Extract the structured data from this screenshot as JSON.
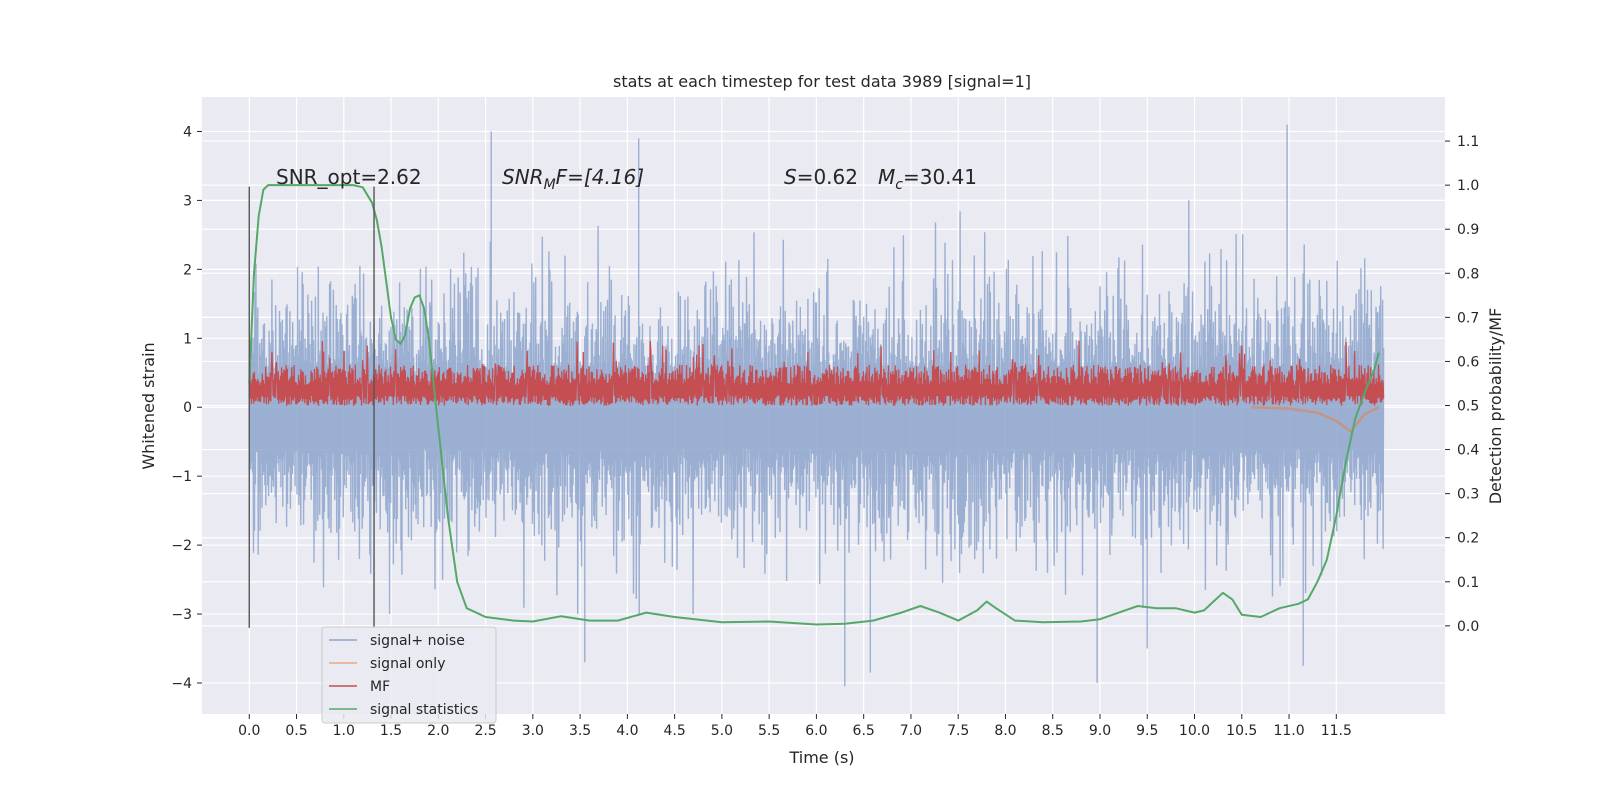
{
  "chart_data": {
    "type": "line",
    "title": "stats at each timestep for test data 3989 [signal=1]",
    "xlabel": "Time (s)",
    "ylabel": "Whitened strain",
    "y2label": "Detection probability/MF",
    "xlim": [
      -0.5,
      12.65
    ],
    "ylim": [
      -4.45,
      4.5
    ],
    "y2lim": [
      -0.2,
      1.2
    ],
    "xticks": [
      0.0,
      0.5,
      1.0,
      1.5,
      2.0,
      2.5,
      3.0,
      3.5,
      4.0,
      4.5,
      5.0,
      5.5,
      6.0,
      6.5,
      7.0,
      7.5,
      8.0,
      8.5,
      9.0,
      9.5,
      10.0,
      10.5,
      11.0,
      11.5
    ],
    "xtick_labels": [
      "0.0",
      "0.5",
      "1.0",
      "1.5",
      "2.0",
      "2.5",
      "3.0",
      "3.5",
      "4.0",
      "4.5",
      "5.0",
      "5.5",
      "6.0",
      "6.5",
      "7.0",
      "7.5",
      "8.0",
      "8.5",
      "9.0",
      "9.5",
      "10.0",
      "10.5",
      "11.0",
      "11.5"
    ],
    "yticks": [
      4,
      3,
      2,
      1,
      0,
      -1,
      -2,
      -3,
      -4
    ],
    "ytick_labels": [
      "4",
      "3",
      "2",
      "1",
      "0",
      "−1",
      "−2",
      "−3",
      "−4"
    ],
    "y2ticks": [
      1.1,
      1.0,
      0.9,
      0.8,
      0.7,
      0.6,
      0.5,
      0.4,
      0.3,
      0.2,
      0.1,
      0.0
    ],
    "y2tick_labels": [
      "1.1",
      "1.0",
      "0.9",
      "0.8",
      "0.7",
      "0.6",
      "0.5",
      "0.4",
      "0.3",
      "0.2",
      "0.1",
      "0.0"
    ],
    "grid": true,
    "legend_placement": "lower-left",
    "vlines": [
      0.0,
      1.32
    ],
    "vline_range": [
      -3.2,
      3.2
    ],
    "annotations": {
      "snr_opt": "SNR_opt=2.62",
      "snr_mf_a": "SNR",
      "snr_mf_sub": "M",
      "snr_mf_b": "F=[4.16]",
      "s_a": "S",
      "s_b": "=0.62",
      "mc_a": "M",
      "mc_sub": "c",
      "mc_b": "=30.41"
    },
    "series": [
      {
        "name": "signal+ noise",
        "color": "#8da4cc",
        "x_range": [
          0.0,
          12.0
        ],
        "envelope_upper_typical": 1.8,
        "envelope_lower_typical": -2.0,
        "notable_spikes": [
          {
            "x": 2.56,
            "y": 4.0
          },
          {
            "x": 4.12,
            "y": 3.9
          },
          {
            "x": 10.98,
            "y": 4.1
          },
          {
            "x": 3.55,
            "y": -3.7
          },
          {
            "x": 6.3,
            "y": -4.05
          },
          {
            "x": 6.57,
            "y": -3.85
          },
          {
            "x": 8.97,
            "y": -4.0
          },
          {
            "x": 11.15,
            "y": -3.75
          },
          {
            "x": 9.5,
            "y": -3.5
          }
        ]
      },
      {
        "name": "signal only",
        "color": "#dd8452",
        "x": [
          10.6,
          11.0,
          11.3,
          11.5,
          11.65,
          11.8,
          11.95
        ],
        "y": [
          0.0,
          -0.02,
          -0.08,
          -0.2,
          -0.35,
          -0.1,
          0.0
        ]
      },
      {
        "name": "MF",
        "color": "#c44e52",
        "x_range": [
          0.0,
          12.0
        ],
        "band_low": 0.02,
        "band_high": 0.62
      },
      {
        "name": "signal statistics",
        "color": "#55a868",
        "axis": "right",
        "x": [
          0.0,
          0.05,
          0.1,
          0.15,
          0.2,
          0.3,
          0.5,
          0.8,
          1.0,
          1.1,
          1.2,
          1.3,
          1.35,
          1.4,
          1.45,
          1.5,
          1.55,
          1.6,
          1.65,
          1.7,
          1.75,
          1.8,
          1.85,
          1.9,
          1.95,
          2.0,
          2.1,
          2.2,
          2.3,
          2.5,
          2.8,
          3.0,
          3.3,
          3.6,
          3.9,
          4.2,
          4.5,
          5.0,
          5.5,
          6.0,
          6.3,
          6.6,
          6.9,
          7.1,
          7.3,
          7.5,
          7.7,
          7.8,
          7.9,
          8.1,
          8.4,
          8.8,
          9.0,
          9.2,
          9.4,
          9.6,
          9.8,
          10.0,
          10.1,
          10.2,
          10.3,
          10.4,
          10.5,
          10.7,
          10.9,
          11.1,
          11.2,
          11.3,
          11.4,
          11.5,
          11.6,
          11.7,
          11.8,
          11.9,
          11.95
        ],
        "y": [
          0.55,
          0.8,
          0.93,
          0.99,
          1.0,
          1.0,
          1.0,
          1.0,
          1.0,
          1.0,
          0.995,
          0.96,
          0.92,
          0.86,
          0.78,
          0.7,
          0.65,
          0.64,
          0.66,
          0.72,
          0.745,
          0.75,
          0.72,
          0.65,
          0.55,
          0.45,
          0.25,
          0.1,
          0.04,
          0.02,
          0.012,
          0.01,
          0.022,
          0.012,
          0.012,
          0.03,
          0.02,
          0.008,
          0.01,
          0.003,
          0.005,
          0.012,
          0.03,
          0.045,
          0.03,
          0.012,
          0.035,
          0.055,
          0.04,
          0.012,
          0.008,
          0.01,
          0.015,
          0.03,
          0.045,
          0.04,
          0.04,
          0.03,
          0.035,
          0.055,
          0.075,
          0.06,
          0.025,
          0.02,
          0.04,
          0.05,
          0.06,
          0.1,
          0.15,
          0.25,
          0.37,
          0.47,
          0.53,
          0.58,
          0.62
        ]
      }
    ]
  }
}
